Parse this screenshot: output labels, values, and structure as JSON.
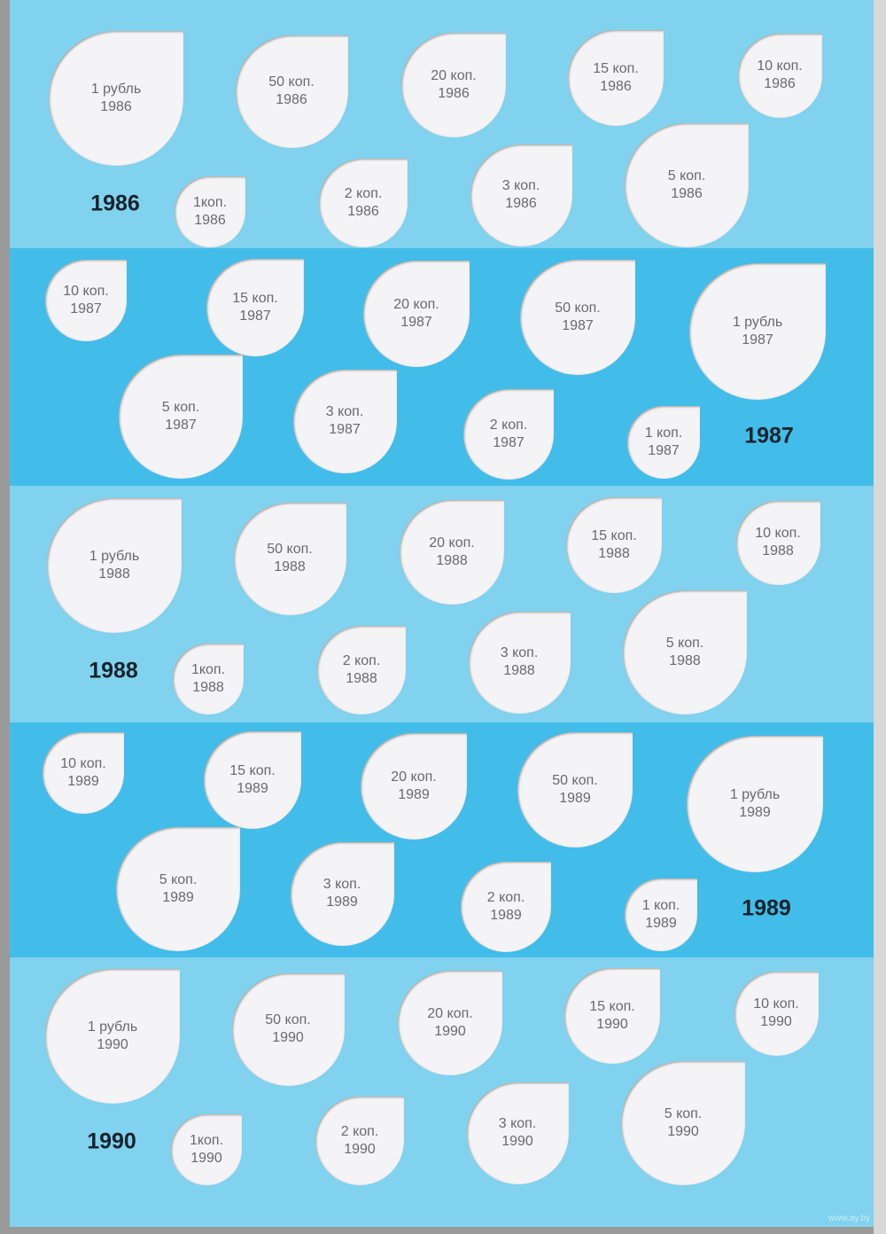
{
  "colors": {
    "band_light": "#80d2ee",
    "band_dark": "#42bdea",
    "slot": "#f4f3f6"
  },
  "watermark": "www.ay.by",
  "bands": [
    {
      "year": "1986",
      "shade": "light",
      "coins": [
        {
          "denom": "1 рубль",
          "year": "1986"
        },
        {
          "denom": "50 коп.",
          "year": "1986"
        },
        {
          "denom": "20 коп.",
          "year": "1986"
        },
        {
          "denom": "15 коп.",
          "year": "1986"
        },
        {
          "denom": "10 коп.",
          "year": "1986"
        },
        {
          "denom": "1коп.",
          "year": "1986"
        },
        {
          "denom": "2 коп.",
          "year": "1986"
        },
        {
          "denom": "3 коп.",
          "year": "1986"
        },
        {
          "denom": "5 коп.",
          "year": "1986"
        }
      ]
    },
    {
      "year": "1987",
      "shade": "dark",
      "coins": [
        {
          "denom": "10 коп.",
          "year": "1987"
        },
        {
          "denom": "15 коп.",
          "year": "1987"
        },
        {
          "denom": "20 коп.",
          "year": "1987"
        },
        {
          "denom": "50 коп.",
          "year": "1987"
        },
        {
          "denom": "1 рубль",
          "year": "1987"
        },
        {
          "denom": "5 коп.",
          "year": "1987"
        },
        {
          "denom": "3 коп.",
          "year": "1987"
        },
        {
          "denom": "2 коп.",
          "year": "1987"
        },
        {
          "denom": "1 коп.",
          "year": "1987"
        }
      ]
    },
    {
      "year": "1988",
      "shade": "light",
      "coins": [
        {
          "denom": "1 рубль",
          "year": "1988"
        },
        {
          "denom": "50 коп.",
          "year": "1988"
        },
        {
          "denom": "20 коп.",
          "year": "1988"
        },
        {
          "denom": "15 коп.",
          "year": "1988"
        },
        {
          "denom": "10 коп.",
          "year": "1988"
        },
        {
          "denom": "1коп.",
          "year": "1988"
        },
        {
          "denom": "2 коп.",
          "year": "1988"
        },
        {
          "denom": "3 коп.",
          "year": "1988"
        },
        {
          "denom": "5 коп.",
          "year": "1988"
        }
      ]
    },
    {
      "year": "1989",
      "shade": "dark",
      "coins": [
        {
          "denom": "10 коп.",
          "year": "1989"
        },
        {
          "denom": "15 коп.",
          "year": "1989"
        },
        {
          "denom": "20 коп.",
          "year": "1989"
        },
        {
          "denom": "50 коп.",
          "year": "1989"
        },
        {
          "denom": "1 рубль",
          "year": "1989"
        },
        {
          "denom": "5 коп.",
          "year": "1989"
        },
        {
          "denom": "3 коп.",
          "year": "1989"
        },
        {
          "denom": "2 коп.",
          "year": "1989"
        },
        {
          "denom": "1 коп.",
          "year": "1989"
        }
      ]
    },
    {
      "year": "1990",
      "shade": "light",
      "coins": [
        {
          "denom": "1 рубль",
          "year": "1990"
        },
        {
          "denom": "50 коп.",
          "year": "1990"
        },
        {
          "denom": "20 коп.",
          "year": "1990"
        },
        {
          "denom": "15 коп.",
          "year": "1990"
        },
        {
          "denom": "10 коп.",
          "year": "1990"
        },
        {
          "denom": "1коп.",
          "year": "1990"
        },
        {
          "denom": "2 коп.",
          "year": "1990"
        },
        {
          "denom": "3 коп.",
          "year": "1990"
        },
        {
          "denom": "5 коп.",
          "year": "1990"
        }
      ]
    }
  ]
}
